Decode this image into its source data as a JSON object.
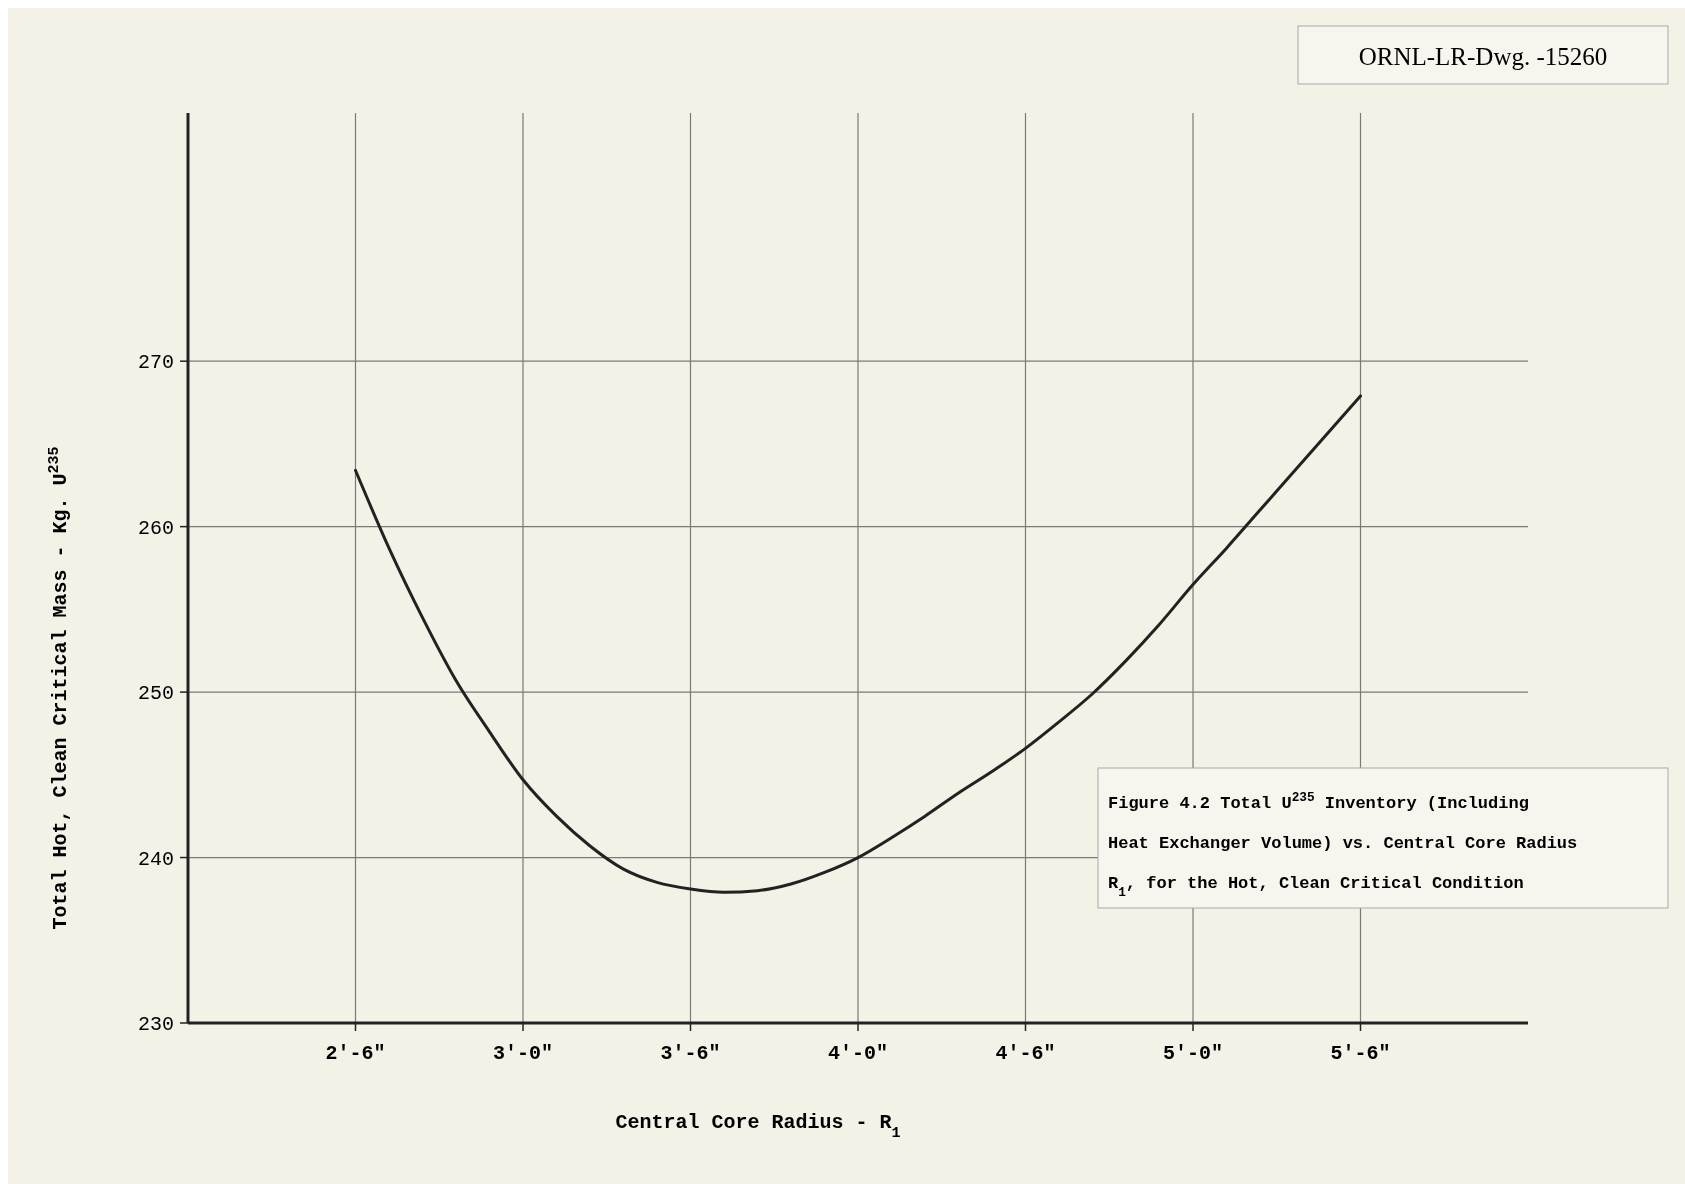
{
  "chart_data": {
    "type": "line",
    "xlabel": "Central Core Radius - R$_{1}$",
    "ylabel": "Total Hot, Clean Critical Mass - Kg. U$^{235}$",
    "annotations": [
      "ORNL-LR-Dwg. -15260",
      "Figure 4.2  Total U$^{235}$ Inventory (Including Heat Exchanger Volume) vs. Central Core Radius R$_{1}$, for the Hot, Clean Critical Condition"
    ],
    "categories": [
      null,
      null,
      null,
      null,
      null,
      "2'-6\"",
      null,
      null,
      null,
      null,
      "3'-0\"",
      null,
      null,
      null,
      null,
      "3'-6\"",
      null,
      null,
      null,
      null,
      "4'-0\"",
      null,
      null,
      null,
      null,
      "4'-6\"",
      null,
      null,
      null,
      null,
      "5'-0\"",
      null,
      null,
      null,
      null,
      "5'-6\"",
      null,
      null,
      null,
      null,
      null
    ],
    "ylim": [
      230,
      285
    ],
    "yticks": [
      230,
      240,
      250,
      260,
      270
    ],
    "grid": true,
    "line_style": "solid",
    "marker": "none",
    "series": [
      {
        "color": "#222222",
        "values": [
          null,
          null,
          null,
          null,
          null,
          263.4,
          258.7,
          254.5,
          250.7,
          247.6,
          244.7,
          242.5,
          240.7,
          239.3,
          238.5,
          238.1,
          237.9,
          238.0,
          238.4,
          239.1,
          240.0,
          241.2,
          242.5,
          243.9,
          245.2,
          246.6,
          248.2,
          249.9,
          251.9,
          254.1,
          256.5,
          258.7,
          261.0,
          263.3,
          265.6,
          267.9,
          null,
          null,
          null,
          null,
          null
        ]
      }
    ]
  }
}
